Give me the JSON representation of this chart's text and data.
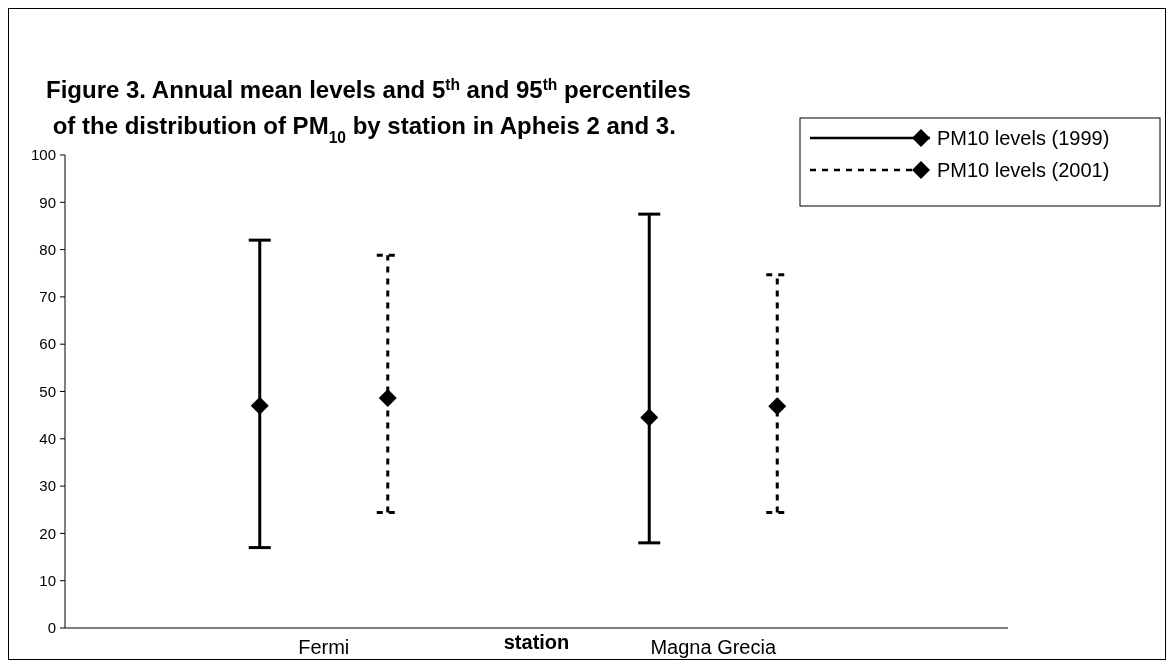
{
  "chart_data": {
    "type": "scatter",
    "title": "Figure 3. Annual mean levels and 5$^{th}$ and 95$^{th}$ percentiles\n of the distribution of PM$_{10}$ by station  in Apheis 2 and 3.",
    "xlabel": "station",
    "categories": [
      "Fermi",
      "Magna Grecia"
    ],
    "series": [
      {
        "name": "PM10 levels (1999)",
        "color": "#000000",
        "line_style": "solid",
        "values": [
          47,
          44.5
        ],
        "errors": [
          [
            17,
            82
          ],
          [
            18,
            87.5
          ]
        ]
      },
      {
        "name": "PM10 levels (2001)",
        "color": "#000000",
        "line_style": "dashed",
        "values": [
          48.6,
          46.9
        ],
        "errors": [
          [
            24.4,
            78.8
          ],
          [
            24.4,
            74.7
          ]
        ]
      }
    ],
    "marker": "diamond",
    "ylim": [
      0,
      100
    ],
    "yticks": [
      0,
      10,
      20,
      30,
      40,
      50,
      60,
      70,
      80,
      90,
      100
    ],
    "grid": false,
    "legend": "top right"
  }
}
